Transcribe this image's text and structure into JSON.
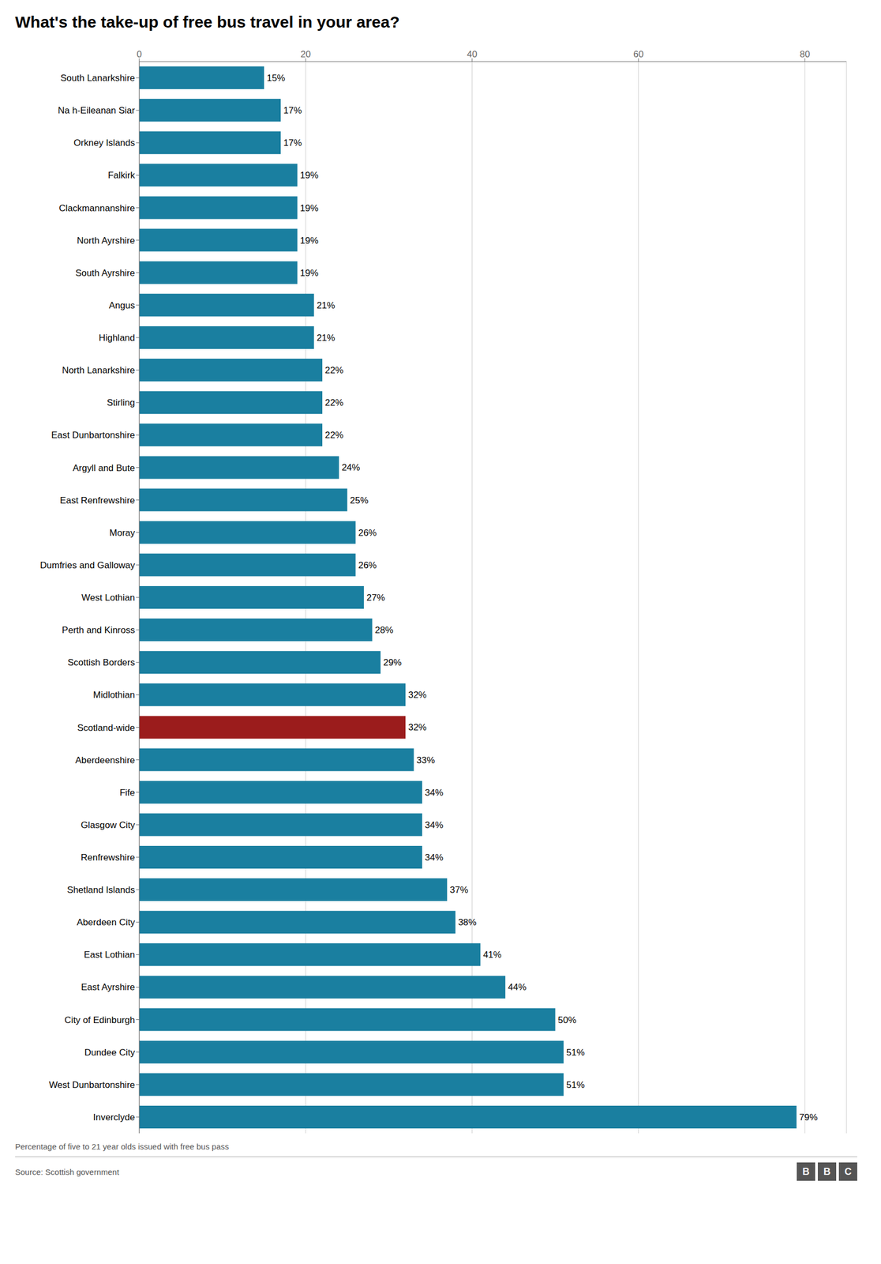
{
  "chart_data": {
    "type": "bar",
    "orientation": "horizontal",
    "title": "What's the take-up of free bus travel in your area?",
    "xlabel": "Percentage of five to 21 year olds issued with free bus pass",
    "annotations": [
      "Source: Scottish government",
      "BBC"
    ],
    "categories": [
      "South Lanarkshire",
      "Na h-Eileanan Siar",
      "Orkney Islands",
      "Falkirk",
      "Clackmannanshire",
      "North Ayrshire",
      "South Ayrshire",
      "Angus",
      "Highland",
      "North Lanarkshire",
      "Stirling",
      "East Dunbartonshire",
      "Argyll and Bute",
      "East Renfrewshire",
      "Moray",
      "Dumfries and Galloway",
      "West Lothian",
      "Perth and Kinross",
      "Scottish Borders",
      "Midlothian",
      "Scotland-wide",
      "Aberdeenshire",
      "Fife",
      "Glasgow City",
      "Renfrewshire",
      "Shetland Islands",
      "Aberdeen City",
      "East Lothian",
      "East Ayrshire",
      "City of Edinburgh",
      "Dundee City",
      "West Dunbartonshire",
      "Inverclyde"
    ],
    "values": [
      15,
      17,
      17,
      19,
      19,
      19,
      19,
      21,
      21,
      22,
      22,
      22,
      24,
      25,
      26,
      26,
      27,
      28,
      29,
      32,
      32,
      33,
      34,
      34,
      34,
      37,
      38,
      41,
      44,
      50,
      51,
      51,
      79
    ],
    "value_labels": [
      "15%",
      "17%",
      "17%",
      "19%",
      "19%",
      "19%",
      "19%",
      "21%",
      "21%",
      "22%",
      "22%",
      "22%",
      "24%",
      "25%",
      "26%",
      "26%",
      "27%",
      "28%",
      "29%",
      "32%",
      "32%",
      "33%",
      "34%",
      "34%",
      "34%",
      "37%",
      "38%",
      "41%",
      "44%",
      "50%",
      "51%",
      "51%",
      "79%"
    ],
    "data_labels": true,
    "colors": [
      "#1a7fa0",
      "#1a7fa0",
      "#1a7fa0",
      "#1a7fa0",
      "#1a7fa0",
      "#1a7fa0",
      "#1a7fa0",
      "#1a7fa0",
      "#1a7fa0",
      "#1a7fa0",
      "#1a7fa0",
      "#1a7fa0",
      "#1a7fa0",
      "#1a7fa0",
      "#1a7fa0",
      "#1a7fa0",
      "#1a7fa0",
      "#1a7fa0",
      "#1a7fa0",
      "#1a7fa0",
      "#9b1c1c",
      "#1a7fa0",
      "#1a7fa0",
      "#1a7fa0",
      "#1a7fa0",
      "#1a7fa0",
      "#1a7fa0",
      "#1a7fa0",
      "#1a7fa0",
      "#1a7fa0",
      "#1a7fa0",
      "#1a7fa0",
      "#1a7fa0"
    ],
    "xlim": [
      0,
      85
    ],
    "xticks": [
      0,
      20,
      40,
      60,
      80
    ],
    "grid": true
  }
}
